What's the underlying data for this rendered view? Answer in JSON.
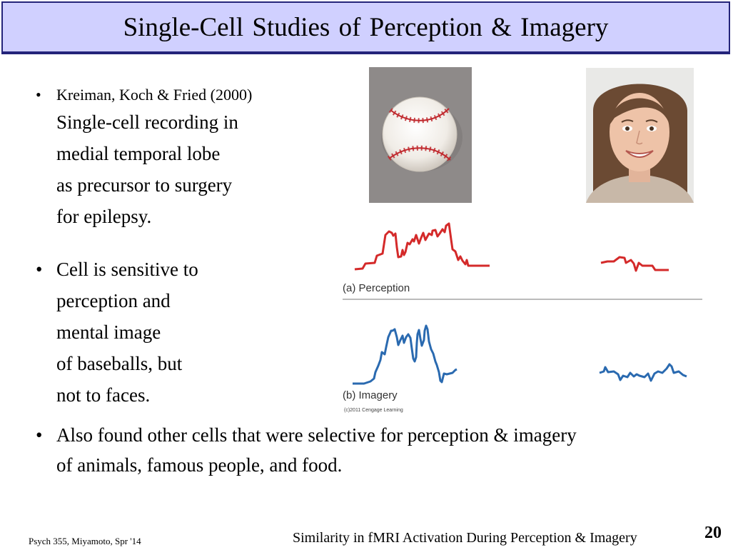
{
  "slide": {
    "title": "Single-Cell Studies of Perception & Imagery",
    "bullet_symbol": "•",
    "bullet1": {
      "citation": "Kreiman, Koch & Fried (2000)",
      "lines": [
        "Single-cell recording in",
        "medial temporal lobe",
        "as precursor to surgery",
        "for epilepsy."
      ]
    },
    "bullet2": {
      "lines": [
        "Cell is sensitive to",
        "perception and",
        "mental image",
        "of baseballs, but",
        "not to faces."
      ]
    },
    "bullet3": {
      "lines": [
        "Also found other cells that were selective for perception & imagery",
        "of animals, famous people, and food."
      ]
    }
  },
  "figure": {
    "label_perception": "(a) Perception",
    "label_imagery": "(b) Imagery",
    "copyright": "(c)2011 Cengage Learning",
    "perception_color": "#d42a2a",
    "imagery_color": "#2a6ab0"
  },
  "footer": {
    "left": "Psych 355, Miyamoto, Spr '14",
    "center": "Similarity in fMRI Activation During Perception & Imagery",
    "page_number": "20"
  }
}
